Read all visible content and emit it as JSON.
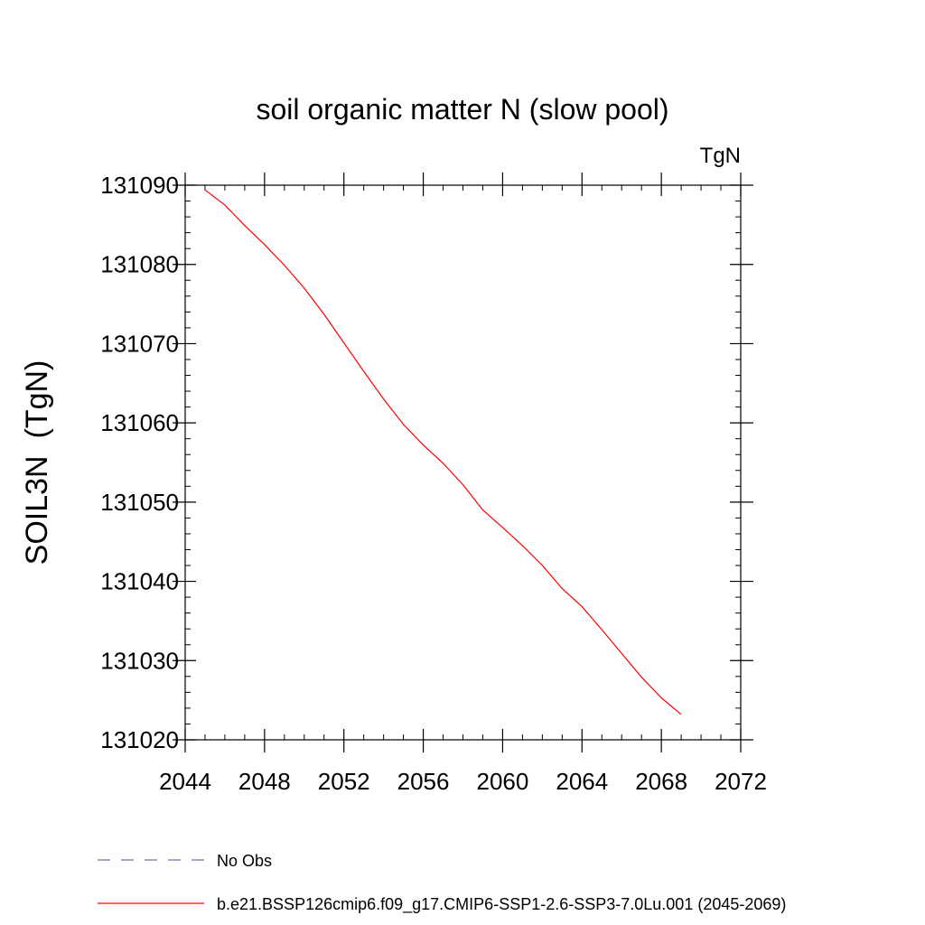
{
  "chart_data": {
    "type": "line",
    "title": "soil organic matter N (slow pool)",
    "units_label": "TgN",
    "ylabel": "SOIL3N  (TgN)",
    "xlabel": "",
    "xlim": [
      2044,
      2072
    ],
    "ylim": [
      131020,
      131090
    ],
    "x_ticks": [
      2044,
      2048,
      2052,
      2056,
      2060,
      2064,
      2068,
      2072
    ],
    "y_ticks": [
      131020,
      131030,
      131040,
      131050,
      131060,
      131070,
      131080,
      131090
    ],
    "x_minor_step": 1,
    "y_minor_step": 2,
    "grid": false,
    "legend_position": "bottom",
    "series": [
      {
        "name": "b.e21.BSSP126cmip6.f09_g17.CMIP6-SSP1-2.6-SSP3-7.0Lu.001 (2045-2069)",
        "color": "#ff0000",
        "dash": "solid",
        "x": [
          2045,
          2046,
          2047,
          2048,
          2049,
          2050,
          2051,
          2052,
          2053,
          2054,
          2055,
          2056,
          2057,
          2058,
          2059,
          2060,
          2061,
          2062,
          2063,
          2064,
          2065,
          2066,
          2067,
          2068,
          2069
        ],
        "y": [
          131089.4,
          131087.5,
          131084.9,
          131082.5,
          131079.9,
          131077.0,
          131073.7,
          131070.1,
          131066.5,
          131063.0,
          131059.8,
          131057.2,
          131054.9,
          131052.2,
          131049.0,
          131046.8,
          131044.5,
          131042.0,
          131039.1,
          131036.8,
          131033.9,
          131030.9,
          131027.9,
          131025.3,
          131023.2
        ]
      }
    ],
    "legend": [
      {
        "label": "No Obs",
        "color": "#7b6fb0",
        "dash": "dashed"
      },
      {
        "label": "b.e21.BSSP126cmip6.f09_g17.CMIP6-SSP1-2.6-SSP3-7.0Lu.001 (2045-2069)",
        "color": "#ff0000",
        "dash": "solid"
      }
    ]
  }
}
